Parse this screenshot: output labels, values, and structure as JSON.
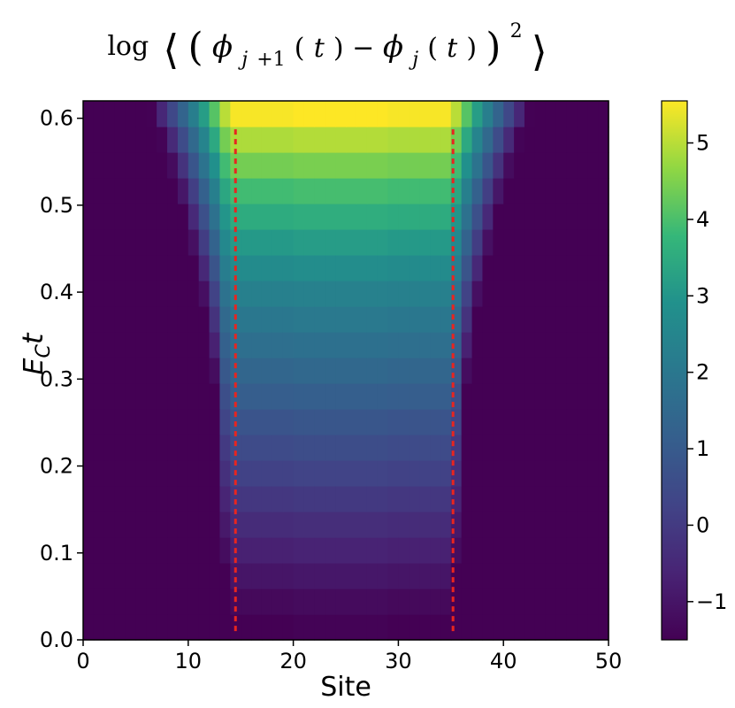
{
  "chart_data": {
    "type": "heatmap",
    "title": "log⟨(ϕj+1(t) − ϕj(t))²⟩",
    "xlabel": "Site",
    "ylabel": "ECt",
    "xlim": [
      0,
      50
    ],
    "ylim": [
      0,
      0.62
    ],
    "x_ticks": [
      "0",
      "10",
      "20",
      "30",
      "40",
      "50"
    ],
    "y_ticks": [
      "0.0",
      "0.1",
      "0.2",
      "0.3",
      "0.4",
      "0.5",
      "0.6"
    ],
    "colorbar": {
      "colormap": "viridis",
      "range": [
        -1.5,
        5.55
      ],
      "ticks": [
        "−1",
        "0",
        "1",
        "2",
        "3",
        "4",
        "5"
      ]
    },
    "time_rows": [
      0.01,
      0.04,
      0.07,
      0.1,
      0.13,
      0.16,
      0.19,
      0.22,
      0.25,
      0.28,
      0.31,
      0.34,
      0.37,
      0.4,
      0.43,
      0.46,
      0.49,
      0.52,
      0.55,
      0.58,
      0.61
    ],
    "center_values": [
      -1.5,
      -1.3,
      -1.0,
      -0.7,
      -0.4,
      -0.1,
      0.2,
      0.5,
      0.8,
      1.1,
      1.4,
      1.7,
      2.0,
      2.3,
      2.7,
      3.1,
      3.5,
      3.9,
      4.4,
      4.9,
      5.5
    ],
    "light_cone_edges": [
      14.5,
      35.2
    ],
    "light_cone_color": "#e8251f"
  }
}
